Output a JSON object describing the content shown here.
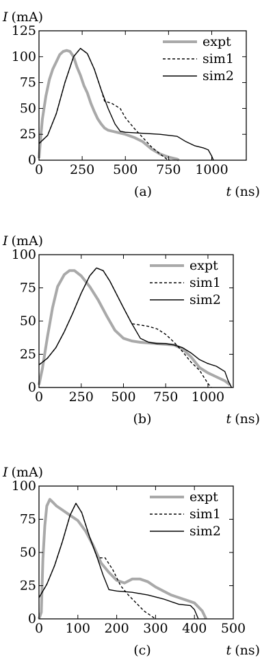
{
  "chart_data": [
    {
      "type": "line",
      "panel_label": "(a)",
      "xlabel": {
        "symbol": "t",
        "unit": "(ns)"
      },
      "ylabel": {
        "symbol": "I",
        "unit": "(mA)"
      },
      "xlim": [
        0,
        1200
      ],
      "ylim": [
        0,
        125
      ],
      "xticks": [
        0,
        250,
        500,
        750,
        1000
      ],
      "yticks": [
        0,
        25,
        50,
        75,
        100,
        125
      ],
      "legend_position": "top-right",
      "series": [
        {
          "name": "expt",
          "style": "thick-gray",
          "color": "#a9a9a9",
          "x": [
            0,
            10,
            20,
            40,
            60,
            80,
            100,
            120,
            140,
            160,
            180,
            200,
            220,
            240,
            260,
            280,
            300,
            320,
            340,
            360,
            380,
            400,
            450,
            500,
            550,
            600,
            650,
            700,
            750,
            800,
            810
          ],
          "y": [
            2,
            22,
            40,
            62,
            78,
            88,
            95,
            102,
            105,
            106,
            105,
            100,
            90,
            82,
            72,
            65,
            55,
            47,
            40,
            35,
            31,
            29,
            27,
            25,
            22,
            18,
            11,
            6,
            3,
            1,
            0
          ]
        },
        {
          "name": "sim1",
          "style": "dashed",
          "color": "#000000",
          "x": [
            0,
            50,
            100,
            150,
            200,
            240,
            280,
            320,
            360,
            380,
            420,
            470,
            500,
            550,
            600,
            650,
            700,
            740,
            760
          ],
          "y": [
            16,
            24,
            45,
            75,
            100,
            108,
            103,
            88,
            68,
            57,
            55,
            50,
            41,
            31,
            22,
            13,
            6,
            1,
            0
          ]
        },
        {
          "name": "sim2",
          "style": "solid",
          "color": "#000000",
          "x": [
            0,
            50,
            100,
            150,
            200,
            240,
            280,
            320,
            360,
            400,
            440,
            470,
            500,
            600,
            700,
            800,
            850,
            900,
            950,
            980,
            1000,
            1010
          ],
          "y": [
            16,
            24,
            45,
            75,
            100,
            108,
            103,
            88,
            68,
            50,
            35,
            28,
            27,
            26,
            25,
            23,
            18,
            14,
            12,
            10,
            4,
            0
          ]
        }
      ]
    },
    {
      "type": "line",
      "panel_label": "(b)",
      "xlabel": {
        "symbol": "t",
        "unit": "(ns)"
      },
      "ylabel": {
        "symbol": "I",
        "unit": "(mA)"
      },
      "xlim": [
        0,
        1150
      ],
      "ylim": [
        0,
        100
      ],
      "xticks": [
        0,
        250,
        500,
        750,
        1000
      ],
      "yticks": [
        0,
        25,
        50,
        75,
        100
      ],
      "legend_position": "top-right",
      "series": [
        {
          "name": "expt",
          "style": "thick-gray",
          "color": "#a9a9a9",
          "x": [
            0,
            20,
            50,
            80,
            110,
            150,
            180,
            210,
            250,
            300,
            350,
            400,
            450,
            500,
            550,
            600,
            700,
            800,
            850,
            900,
            950,
            1000,
            1050,
            1100,
            1130
          ],
          "y": [
            2,
            14,
            38,
            60,
            76,
            85,
            88,
            88,
            84,
            76,
            66,
            54,
            43,
            37,
            35,
            34,
            33,
            32,
            29,
            23,
            15,
            11,
            8,
            5,
            2
          ]
        },
        {
          "name": "sim1",
          "style": "dashed",
          "color": "#000000",
          "x": [
            0,
            50,
            100,
            150,
            200,
            250,
            300,
            340,
            380,
            420,
            460,
            500,
            550,
            600,
            650,
            700,
            750,
            800,
            850,
            900,
            950,
            1000,
            1020
          ],
          "y": [
            17,
            22,
            30,
            42,
            56,
            71,
            84,
            90,
            88,
            80,
            70,
            60,
            48,
            47,
            46,
            44,
            40,
            34,
            27,
            19,
            13,
            3,
            0
          ]
        },
        {
          "name": "sim2",
          "style": "solid",
          "color": "#000000",
          "x": [
            0,
            50,
            100,
            150,
            200,
            250,
            300,
            340,
            380,
            420,
            460,
            500,
            550,
            600,
            650,
            700,
            750,
            800,
            850,
            900,
            950,
            1000,
            1050,
            1100,
            1120,
            1140
          ],
          "y": [
            17,
            22,
            30,
            42,
            56,
            71,
            84,
            90,
            88,
            80,
            70,
            60,
            48,
            37,
            34,
            33,
            33,
            32,
            30,
            26,
            21,
            18,
            16,
            12,
            5,
            0
          ]
        }
      ]
    },
    {
      "type": "line",
      "panel_label": "(c)",
      "xlabel": {
        "symbol": "t",
        "unit": "(ns)"
      },
      "ylabel": {
        "symbol": "I",
        "unit": "(mA)"
      },
      "xlim": [
        0,
        500
      ],
      "ylim": [
        0,
        100
      ],
      "xticks": [
        0,
        100,
        200,
        300,
        400,
        500
      ],
      "yticks": [
        0,
        25,
        50,
        75,
        100
      ],
      "legend_position": "top-right",
      "series": [
        {
          "name": "expt",
          "style": "thick-gray",
          "color": "#a9a9a9",
          "x": [
            0,
            6,
            10,
            15,
            20,
            28,
            35,
            45,
            60,
            80,
            100,
            120,
            140,
            160,
            180,
            200,
            220,
            240,
            260,
            280,
            300,
            320,
            340,
            360,
            380,
            400,
            420,
            430
          ],
          "y": [
            0,
            5,
            45,
            70,
            85,
            90,
            88,
            85,
            82,
            78,
            74,
            66,
            55,
            42,
            35,
            29,
            27,
            30,
            30,
            28,
            24,
            21,
            18,
            16,
            14,
            12,
            6,
            0
          ]
        },
        {
          "name": "sim1",
          "style": "dashed",
          "color": "#000000",
          "x": [
            0,
            20,
            40,
            60,
            80,
            95,
            110,
            130,
            150,
            170,
            190,
            210,
            230,
            250,
            270,
            290,
            300
          ],
          "y": [
            16,
            26,
            40,
            58,
            78,
            87,
            80,
            62,
            46,
            46,
            37,
            25,
            18,
            12,
            6,
            2,
            0
          ]
        },
        {
          "name": "sim2",
          "style": "solid",
          "color": "#000000",
          "x": [
            0,
            20,
            40,
            60,
            80,
            95,
            110,
            130,
            150,
            165,
            180,
            200,
            240,
            280,
            320,
            360,
            390,
            400,
            410
          ],
          "y": [
            16,
            26,
            40,
            58,
            78,
            87,
            80,
            62,
            46,
            33,
            22,
            21,
            20,
            18,
            15,
            11,
            10,
            7,
            0
          ]
        }
      ]
    }
  ]
}
